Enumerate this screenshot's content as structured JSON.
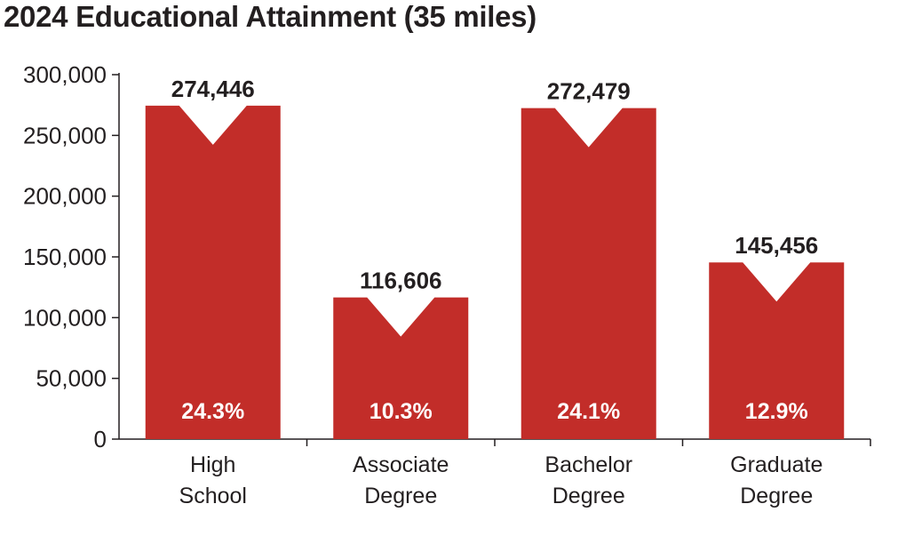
{
  "chart_data": {
    "type": "bar",
    "title": "2024 Educational Attainment (35 miles)",
    "categories": [
      [
        "High",
        "School"
      ],
      [
        "Associate",
        "Degree"
      ],
      [
        "Bachelor",
        "Degree"
      ],
      [
        "Graduate",
        "Degree"
      ]
    ],
    "values": [
      274446,
      116606,
      272479,
      145456
    ],
    "value_labels": [
      "274,446",
      "116,606",
      "272,479",
      "145,456"
    ],
    "percent_labels": [
      "24.3%",
      "10.3%",
      "24.1%",
      "12.9%"
    ],
    "ylim": [
      0,
      300000
    ],
    "yticks": [
      0,
      50000,
      100000,
      150000,
      200000,
      250000,
      300000
    ],
    "ytick_labels": [
      "0",
      "50,000",
      "100,000",
      "150,000",
      "200,000",
      "250,000",
      "300,000"
    ],
    "grid": false,
    "legend": "none",
    "colors": {
      "bar": "#c22d29",
      "axis": "#231f20",
      "text": "#231f20",
      "inner_text": "#ffffff"
    }
  }
}
